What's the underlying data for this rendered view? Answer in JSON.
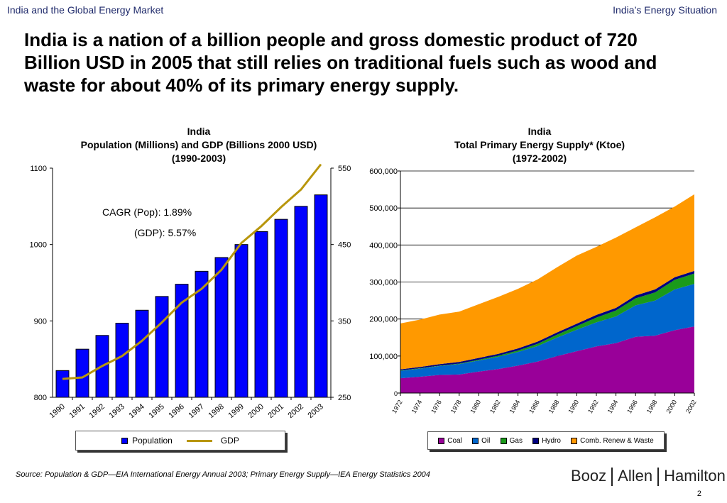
{
  "header": {
    "left": "India and the Global Energy Market",
    "right": "India’s Energy Situation"
  },
  "headline": "India is a nation of a billion people and gross domestic product of 720 Billion USD in 2005 that still relies on traditional fuels such as wood and waste for about 40% of its primary energy supply.",
  "chart_data": [
    {
      "type": "bar",
      "title_lines": [
        "India",
        "Population (Millions) and GDP (Billions 2000 USD)",
        "(1990-2003)"
      ],
      "categories": [
        "1990",
        "1991",
        "1992",
        "1993",
        "1994",
        "1995",
        "1996",
        "1997",
        "1998",
        "1999",
        "2000",
        "2001",
        "2002",
        "2003"
      ],
      "series": [
        {
          "name": "Population",
          "type": "bar",
          "axis": "left",
          "color": "#0000ff",
          "values": [
            835,
            863,
            881,
            897,
            914,
            932,
            948,
            965,
            983,
            1000,
            1017,
            1033,
            1050,
            1065
          ]
        },
        {
          "name": "GDP",
          "type": "line",
          "axis": "right",
          "color": "#b8960c",
          "values": [
            274,
            276,
            291,
            304,
            324,
            348,
            374,
            392,
            417,
            452,
            474,
            499,
            522,
            555
          ]
        }
      ],
      "ylim_left": [
        800,
        1100
      ],
      "yticks_left": [
        "800",
        "900",
        "1000",
        "1100"
      ],
      "ylim_right": [
        250,
        550
      ],
      "yticks_right": [
        "250",
        "350",
        "450",
        "550"
      ],
      "annotations": [
        "CAGR (Pop): 1.89%",
        "(GDP): 5.57%"
      ],
      "legend": [
        "Population",
        "GDP"
      ],
      "grid": false
    },
    {
      "type": "area",
      "stacked": true,
      "title_lines": [
        "India",
        "Total Primary Energy Supply* (Ktoe)",
        "(1972-2002)"
      ],
      "x": [
        1972,
        1974,
        1976,
        1978,
        1980,
        1982,
        1984,
        1986,
        1988,
        1990,
        1992,
        1994,
        1996,
        1998,
        2000,
        2002
      ],
      "xtick_labels": [
        "1972",
        "1974",
        "1976",
        "1978",
        "1980",
        "1982",
        "1984",
        "1986",
        "1988",
        "1990",
        "1992",
        "1994",
        "1996",
        "1998",
        "2000",
        "2002"
      ],
      "series": [
        {
          "name": "Coal",
          "color": "#990099",
          "values": [
            40000,
            44000,
            49000,
            50000,
            58000,
            65000,
            74000,
            85000,
            100000,
            113000,
            126000,
            135000,
            152000,
            155000,
            170000,
            180000
          ]
        },
        {
          "name": "Oil",
          "color": "#0066cc",
          "values": [
            20000,
            22000,
            24000,
            28000,
            30000,
            33000,
            37000,
            42000,
            50000,
            58000,
            65000,
            72000,
            85000,
            95000,
            110000,
            115000
          ]
        },
        {
          "name": "Gas",
          "color": "#1a9a1a",
          "values": [
            1000,
            1000,
            1000,
            1500,
            2000,
            3000,
            4000,
            6000,
            8000,
            10000,
            13000,
            16000,
            19000,
            22000,
            26000,
            28000
          ]
        },
        {
          "name": "Hydro",
          "color": "#000080",
          "values": [
            3000,
            3500,
            4000,
            4500,
            5000,
            5000,
            5500,
            6000,
            6000,
            6500,
            7000,
            7000,
            7500,
            8000,
            7000,
            7000
          ]
        },
        {
          "name": "Comb. Renew & Waste",
          "color": "#ff9900",
          "values": [
            124000,
            128000,
            134000,
            136000,
            145000,
            154000,
            161000,
            168000,
            176000,
            184000,
            184000,
            190000,
            184000,
            195000,
            191000,
            207000
          ]
        }
      ],
      "ylim": [
        0,
        600000
      ],
      "yticks": [
        "0",
        "100,000",
        "200,000",
        "300,000",
        "400,000",
        "500,000",
        "600,000"
      ],
      "legend": [
        "Coal",
        "Oil",
        "Gas",
        "Hydro",
        "Comb. Renew & Waste"
      ],
      "grid": true
    }
  ],
  "source": "Source:  Population & GDP—EIA International Energy Annual 2003; Primary Energy Supply—IEA Energy Statistics  2004",
  "logo": {
    "part1": "Booz",
    "part2": "Allen",
    "part3": "Hamilton"
  },
  "page_number": "2"
}
